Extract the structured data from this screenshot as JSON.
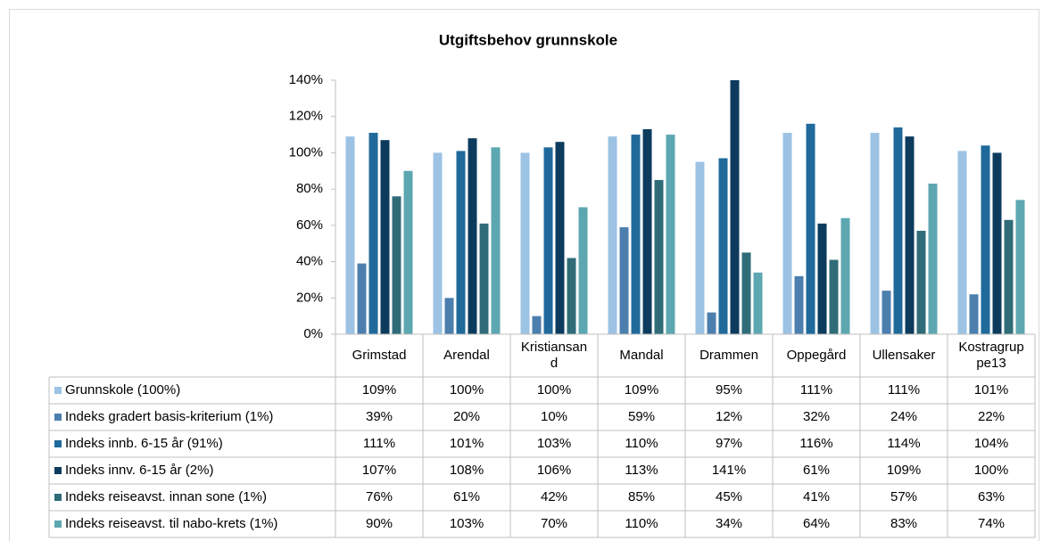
{
  "chart_data": {
    "type": "bar",
    "title": "Utgiftsbehov grunnskole",
    "categories": [
      "Grimstad",
      "Arendal",
      "Kristiansand",
      "Mandal",
      "Drammen",
      "Oppegård",
      "Ullensaker",
      "Kostragruppe13"
    ],
    "ylim": [
      0,
      140
    ],
    "yticks": [
      {
        "value": 0,
        "label": "0%"
      },
      {
        "value": 20,
        "label": "20%"
      },
      {
        "value": 40,
        "label": "40%"
      },
      {
        "value": 60,
        "label": "60%"
      },
      {
        "value": 80,
        "label": "80%"
      },
      {
        "value": 100,
        "label": "100%"
      },
      {
        "value": 120,
        "label": "120%"
      },
      {
        "value": 140,
        "label": "140%"
      }
    ],
    "series": [
      {
        "name": "Grunnskole (100%)",
        "color": "#9cc3e4",
        "values": [
          109,
          100,
          100,
          109,
          95,
          111,
          111,
          101
        ],
        "value_labels": [
          "109%",
          "100%",
          "100%",
          "109%",
          "95%",
          "111%",
          "111%",
          "101%"
        ]
      },
      {
        "name": "Indeks gradert basis-kriterium (1%)",
        "color": "#4c7fae",
        "values": [
          39,
          20,
          10,
          59,
          12,
          32,
          24,
          22
        ],
        "value_labels": [
          "39%",
          "20%",
          "10%",
          "59%",
          "12%",
          "32%",
          "24%",
          "22%"
        ]
      },
      {
        "name": "Indeks innb. 6-15 år (91%)",
        "color": "#1f6a9b",
        "values": [
          111,
          101,
          103,
          110,
          97,
          116,
          114,
          104
        ],
        "value_labels": [
          "111%",
          "101%",
          "103%",
          "110%",
          "97%",
          "116%",
          "114%",
          "104%"
        ]
      },
      {
        "name": "Indeks innv. 6-15 år (2%)",
        "color": "#0d3b5d",
        "values": [
          107,
          108,
          106,
          113,
          141,
          61,
          109,
          100
        ],
        "value_labels": [
          "107%",
          "108%",
          "106%",
          "113%",
          "141%",
          "61%",
          "109%",
          "100%"
        ]
      },
      {
        "name": "Indeks reiseavst. innan sone (1%)",
        "color": "#2f6c78",
        "values": [
          76,
          61,
          42,
          85,
          45,
          41,
          57,
          63
        ],
        "value_labels": [
          "76%",
          "61%",
          "42%",
          "85%",
          "45%",
          "41%",
          "57%",
          "63%"
        ]
      },
      {
        "name": "Indeks reiseavst. til nabo-krets (1%)",
        "color": "#5da7b1",
        "values": [
          90,
          103,
          70,
          110,
          34,
          64,
          83,
          74
        ],
        "value_labels": [
          "90%",
          "103%",
          "70%",
          "110%",
          "34%",
          "64%",
          "83%",
          "74%"
        ]
      }
    ]
  }
}
